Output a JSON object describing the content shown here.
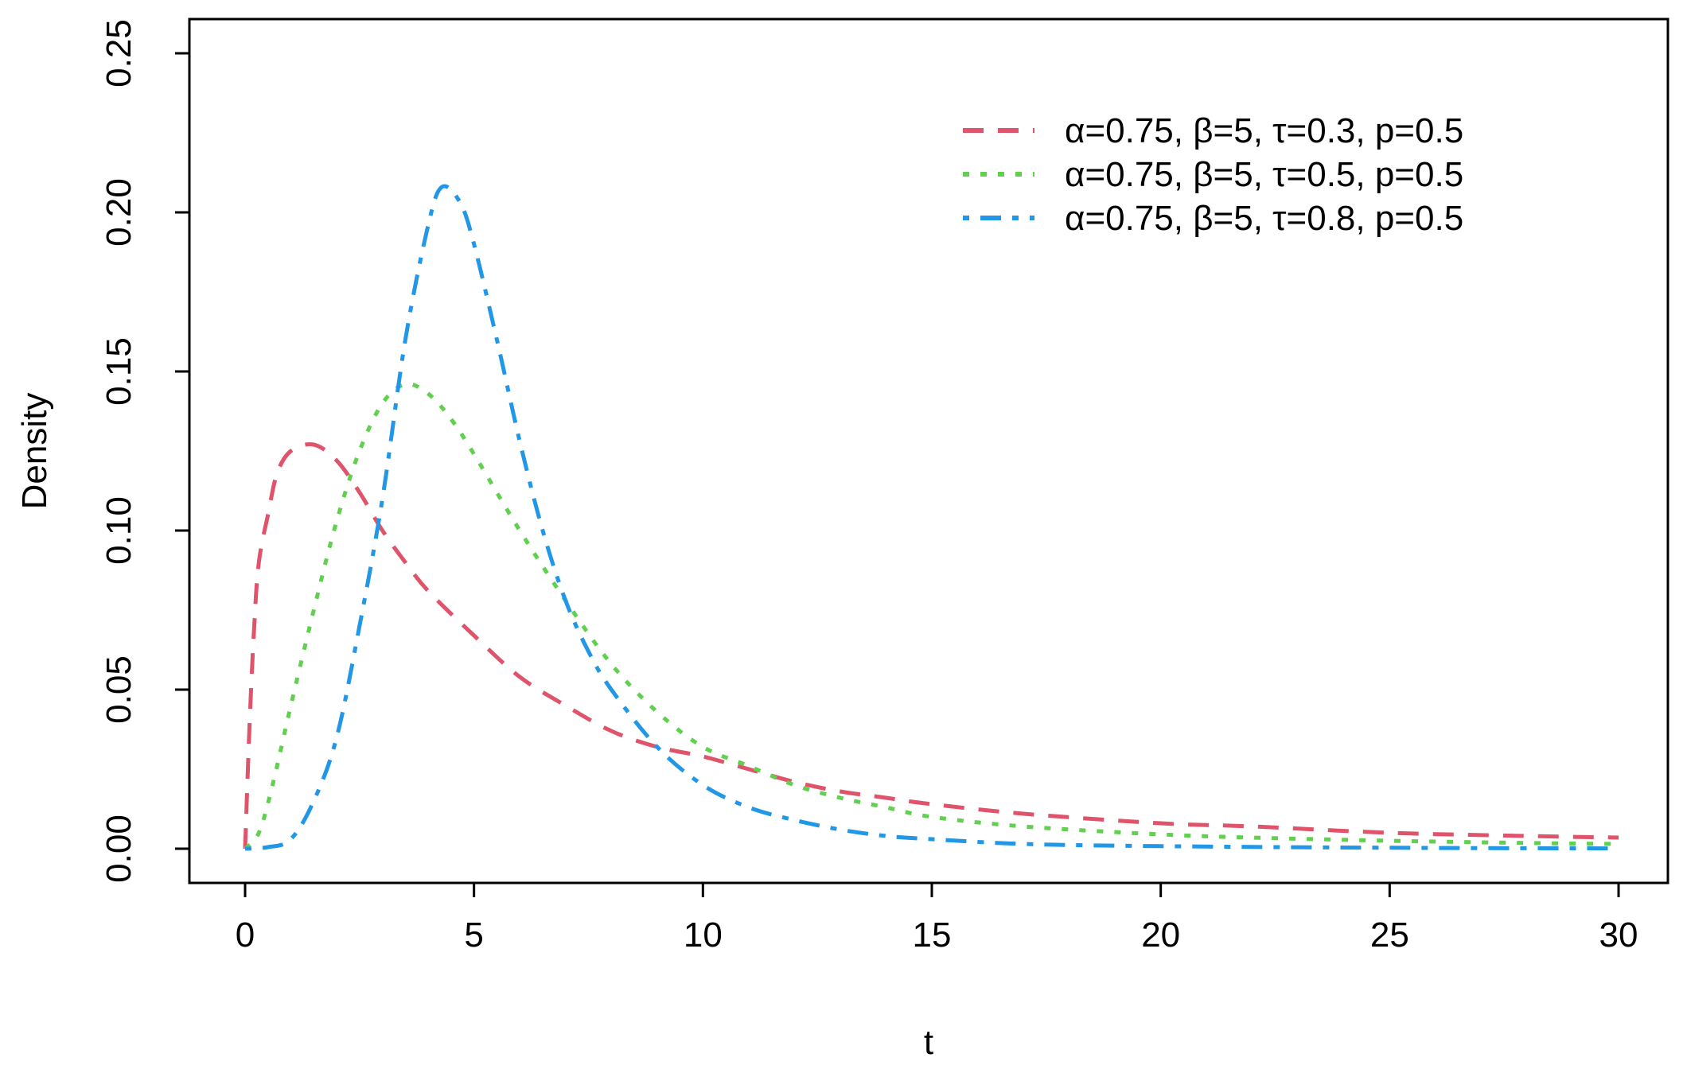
{
  "chart_data": {
    "type": "line",
    "title": "",
    "xlabel": "t",
    "ylabel": "Density",
    "xlim": [
      0,
      30
    ],
    "ylim": [
      0,
      0.25
    ],
    "xticks": [
      0,
      5,
      10,
      15,
      20,
      25,
      30
    ],
    "xtick_labels": [
      "0",
      "5",
      "10",
      "15",
      "20",
      "25",
      "30"
    ],
    "yticks": [
      0,
      0.05,
      0.1,
      0.15,
      0.2,
      0.25
    ],
    "ytick_labels": [
      "0.00",
      "0.05",
      "0.10",
      "0.15",
      "0.20",
      "0.25"
    ],
    "grid": false,
    "legend_position": "top-right",
    "series": [
      {
        "name": "α=0.75, β=5, τ=0.3, p=0.5",
        "color": "#DF536B",
        "dash": "dashed",
        "x": [
          0,
          0.1,
          0.2,
          0.3,
          0.5,
          0.7,
          1,
          1.5,
          2,
          2.5,
          3,
          3.5,
          4,
          5,
          6,
          7,
          8,
          9,
          10,
          11,
          12,
          13,
          14,
          15,
          17,
          20,
          22,
          25,
          28,
          30
        ],
        "y": [
          0,
          0.04,
          0.07,
          0.09,
          0.105,
          0.118,
          0.125,
          0.127,
          0.122,
          0.112,
          0.1,
          0.09,
          0.081,
          0.067,
          0.054,
          0.045,
          0.037,
          0.032,
          0.029,
          0.025,
          0.021,
          0.018,
          0.016,
          0.014,
          0.011,
          0.008,
          0.007,
          0.005,
          0.004,
          0.0035
        ]
      },
      {
        "name": "α=0.75, β=5, τ=0.5, p=0.5",
        "color": "#61D04F",
        "dash": "dotted",
        "x": [
          0,
          0.3,
          0.6,
          1,
          1.5,
          2,
          2.5,
          3,
          3.5,
          4,
          4.5,
          5,
          6,
          7,
          8,
          9,
          10,
          11,
          12,
          13,
          14,
          15,
          17,
          20,
          22,
          25,
          28,
          30
        ],
        "y": [
          0,
          0.005,
          0.02,
          0.045,
          0.075,
          0.103,
          0.125,
          0.14,
          0.146,
          0.143,
          0.135,
          0.124,
          0.1,
          0.078,
          0.058,
          0.043,
          0.032,
          0.026,
          0.02,
          0.016,
          0.013,
          0.01,
          0.007,
          0.0045,
          0.0035,
          0.0025,
          0.0018,
          0.0015
        ]
      },
      {
        "name": "α=0.75, β=5, τ=0.8, p=0.5",
        "color": "#2297E6",
        "dash": "dotdash",
        "x": [
          0,
          0.5,
          1,
          1.5,
          2,
          2.5,
          3,
          3.5,
          4,
          4.3,
          4.7,
          5,
          5.5,
          6,
          6.5,
          7,
          7.5,
          8,
          9,
          10,
          11,
          12,
          13,
          14,
          15,
          17,
          20,
          25,
          30
        ],
        "y": [
          0,
          0.0005,
          0.003,
          0.015,
          0.035,
          0.07,
          0.11,
          0.16,
          0.196,
          0.208,
          0.203,
          0.19,
          0.16,
          0.128,
          0.1,
          0.078,
          0.062,
          0.05,
          0.032,
          0.02,
          0.013,
          0.009,
          0.006,
          0.004,
          0.003,
          0.0015,
          0.0008,
          0.0003,
          0.0001
        ]
      }
    ]
  }
}
